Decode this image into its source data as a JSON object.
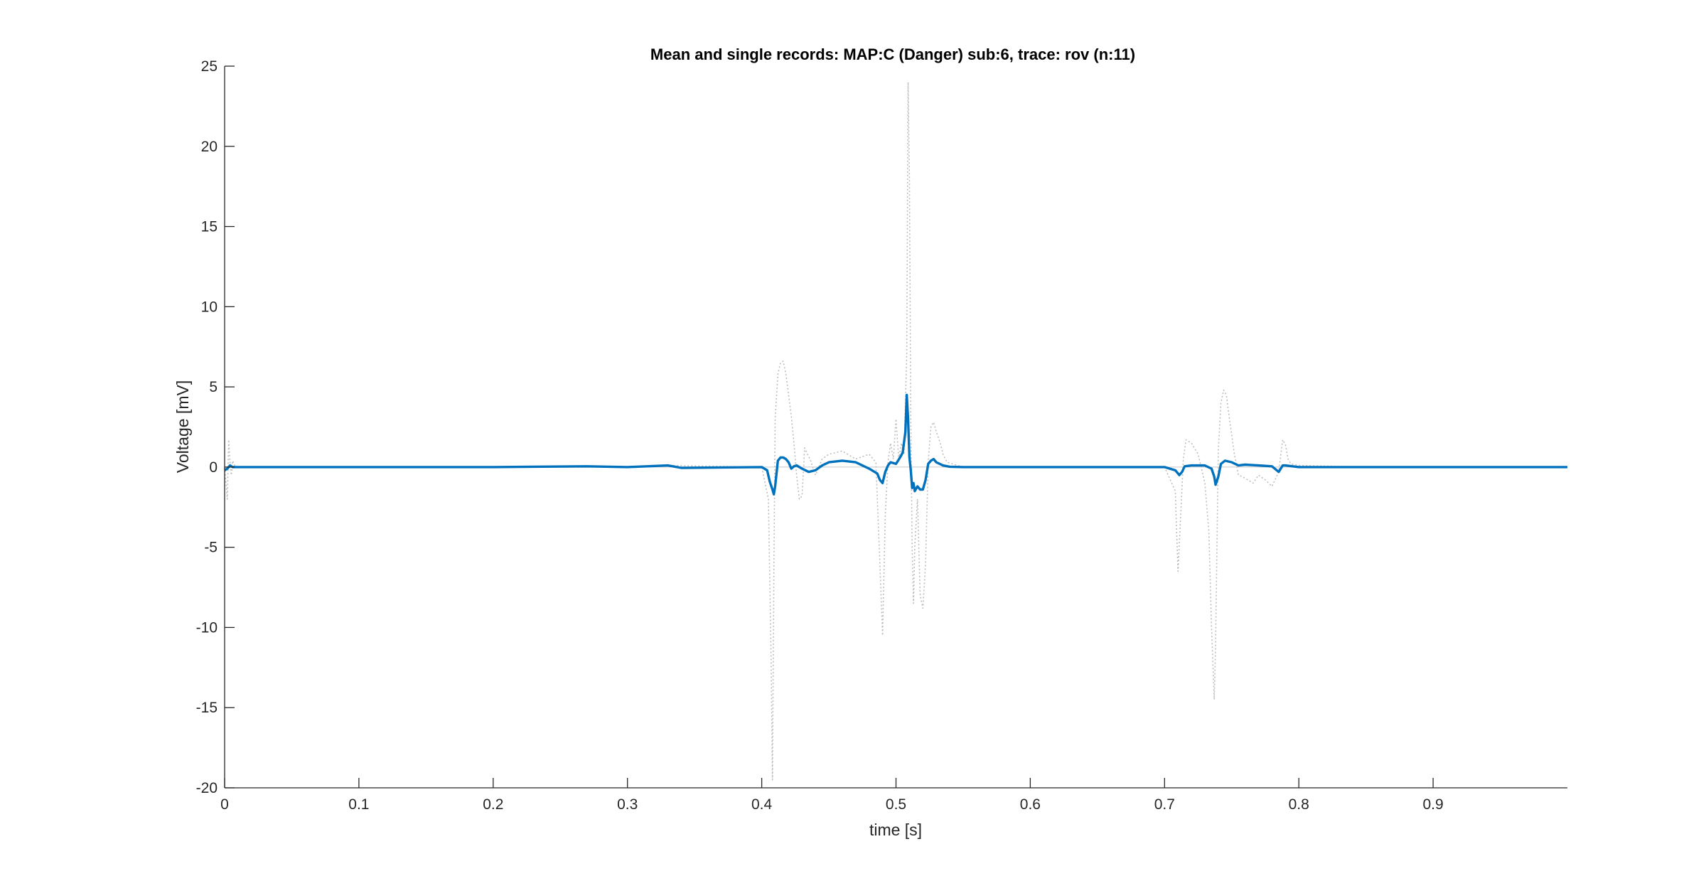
{
  "chart_data": {
    "type": "line",
    "title": "Mean and single records: MAP:C (Danger) sub:6, trace: rov (n:11)",
    "xlabel": "time [s]",
    "ylabel": "Voltage [mV]",
    "xlim": [
      0,
      1
    ],
    "ylim": [
      -20,
      25
    ],
    "xticks": [
      0,
      0.1,
      0.2,
      0.3,
      0.4,
      0.5,
      0.6,
      0.7,
      0.8,
      0.9
    ],
    "xtick_labels": [
      "0",
      "0.1",
      "0.2",
      "0.3",
      "0.4",
      "0.5",
      "0.6",
      "0.7",
      "0.8",
      "0.9"
    ],
    "yticks": [
      -20,
      -15,
      -10,
      -5,
      0,
      5,
      10,
      15,
      20,
      25
    ],
    "ytick_labels": [
      "-20",
      "-15",
      "-10",
      "-5",
      "0",
      "5",
      "10",
      "15",
      "20",
      "25"
    ],
    "grid": false,
    "legend": "none",
    "series": [
      {
        "role": "single-records",
        "color": "#bdbdbd",
        "style": "dotted",
        "x": [
          0,
          0.002,
          0.003,
          0.004,
          0.005,
          0.006,
          0.008,
          0.02,
          0.1,
          0.2,
          0.3,
          0.33,
          0.4,
          0.405,
          0.407,
          0.408,
          0.409,
          0.41,
          0.412,
          0.414,
          0.416,
          0.418,
          0.42,
          0.422,
          0.424,
          0.426,
          0.428,
          0.43,
          0.432,
          0.434,
          0.436,
          0.44,
          0.445,
          0.45,
          0.46,
          0.47,
          0.48,
          0.485,
          0.488,
          0.49,
          0.492,
          0.494,
          0.496,
          0.498,
          0.5,
          0.502,
          0.504,
          0.506,
          0.508,
          0.509,
          0.51,
          0.511,
          0.512,
          0.513,
          0.514,
          0.516,
          0.518,
          0.52,
          0.522,
          0.524,
          0.526,
          0.528,
          0.53,
          0.533,
          0.535,
          0.538,
          0.542,
          0.55,
          0.56,
          0.6,
          0.7,
          0.708,
          0.71,
          0.712,
          0.714,
          0.716,
          0.72,
          0.725,
          0.73,
          0.733,
          0.735,
          0.737,
          0.738,
          0.739,
          0.74,
          0.742,
          0.744,
          0.746,
          0.748,
          0.75,
          0.752,
          0.755,
          0.758,
          0.762,
          0.766,
          0.77,
          0.775,
          0.78,
          0.785,
          0.788,
          0.79,
          0.792,
          0.794,
          0.8,
          0.85,
          0.9,
          1.0
        ],
        "values": [
          0,
          -2,
          1.7,
          0.3,
          -0.5,
          0.4,
          0,
          0,
          0,
          0,
          0,
          0.1,
          0,
          -2,
          -12,
          -19.5,
          -7,
          3,
          5.8,
          6.5,
          6.6,
          5.8,
          4.5,
          3.2,
          1.5,
          -0.5,
          -2,
          -1.8,
          1.2,
          0.8,
          0.5,
          -0.5,
          0.5,
          0.8,
          1,
          0.5,
          0.8,
          0.3,
          -6,
          -10.5,
          -3,
          0.3,
          1.5,
          0.5,
          3,
          0.5,
          1.5,
          0.8,
          7,
          24,
          18,
          3,
          -5,
          -8.5,
          -5,
          -2,
          -8,
          -8.8,
          -6,
          0.3,
          2.5,
          2.8,
          2.2,
          1.5,
          0.8,
          0.3,
          0.2,
          0,
          0,
          0,
          0,
          -1.5,
          -6.5,
          -3,
          0.5,
          1.7,
          1.5,
          0.8,
          -1,
          -4,
          -10,
          -14.5,
          -11,
          -5,
          1,
          4,
          4.8,
          4.5,
          3.2,
          2,
          0.8,
          -0.5,
          -0.6,
          -0.8,
          -1,
          -0.5,
          -0.8,
          -1.2,
          -0.3,
          1.7,
          1.4,
          0.5,
          0.2,
          0.1,
          0,
          0,
          0
        ]
      },
      {
        "role": "mean",
        "color": "#0072BD",
        "style": "solid",
        "x": [
          0,
          0.002,
          0.004,
          0.006,
          0.01,
          0.1,
          0.2,
          0.27,
          0.3,
          0.33,
          0.34,
          0.4,
          0.404,
          0.406,
          0.408,
          0.409,
          0.41,
          0.412,
          0.414,
          0.416,
          0.418,
          0.42,
          0.422,
          0.424,
          0.426,
          0.43,
          0.435,
          0.44,
          0.445,
          0.45,
          0.46,
          0.47,
          0.48,
          0.486,
          0.488,
          0.49,
          0.492,
          0.494,
          0.496,
          0.5,
          0.503,
          0.505,
          0.507,
          0.508,
          0.509,
          0.51,
          0.511,
          0.512,
          0.513,
          0.514,
          0.516,
          0.518,
          0.52,
          0.522,
          0.524,
          0.526,
          0.528,
          0.53,
          0.535,
          0.54,
          0.55,
          0.6,
          0.7,
          0.708,
          0.711,
          0.713,
          0.715,
          0.72,
          0.73,
          0.735,
          0.737,
          0.738,
          0.74,
          0.742,
          0.745,
          0.75,
          0.755,
          0.76,
          0.77,
          0.78,
          0.785,
          0.788,
          0.79,
          0.8,
          0.85,
          0.9,
          0.95,
          1.0
        ],
        "values": [
          -0.2,
          -0.1,
          0.1,
          0,
          0,
          0,
          0,
          0.05,
          0,
          0.1,
          -0.05,
          0,
          -0.2,
          -0.9,
          -1.4,
          -1.7,
          -1.2,
          0.4,
          0.6,
          0.6,
          0.5,
          0.3,
          -0.1,
          0.05,
          0.1,
          -0.1,
          -0.3,
          -0.2,
          0.1,
          0.3,
          0.4,
          0.3,
          -0.1,
          -0.4,
          -0.8,
          -1.0,
          -0.3,
          0.1,
          0.3,
          0.2,
          0.6,
          0.9,
          2.2,
          4.5,
          3.0,
          0.6,
          -0.2,
          -1.3,
          -1.0,
          -1.5,
          -1.2,
          -1.4,
          -1.4,
          -0.8,
          0.2,
          0.4,
          0.5,
          0.3,
          0.1,
          0.02,
          0,
          0,
          0,
          -0.2,
          -0.5,
          -0.3,
          0.05,
          0.1,
          0.1,
          -0.1,
          -0.6,
          -1.1,
          -0.6,
          0.2,
          0.4,
          0.3,
          0.1,
          0.15,
          0.1,
          0.05,
          -0.3,
          0.1,
          0.1,
          0,
          0,
          0,
          0,
          0
        ]
      }
    ]
  }
}
